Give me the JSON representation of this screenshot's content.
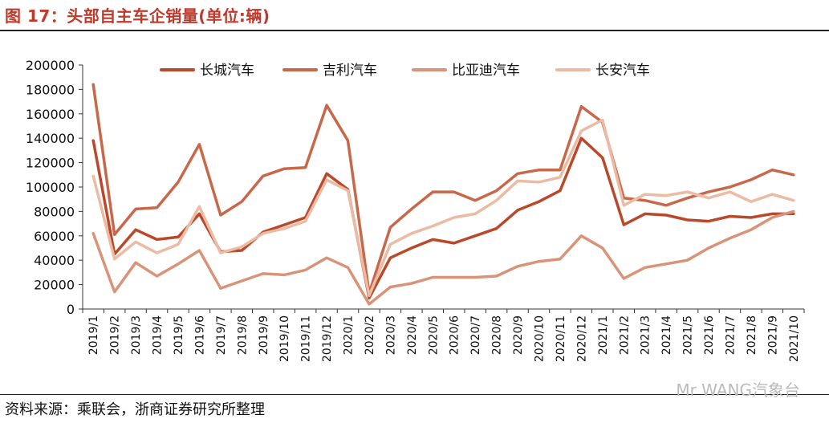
{
  "figure": {
    "title": "图 17：头部自主车企销量(单位:辆)",
    "source": "资料来源：乘联会，浙商证券研究所整理",
    "watermark": "Mr WANG汽象台"
  },
  "chart_data": {
    "type": "line",
    "title": "",
    "xlabel": "",
    "ylabel": "",
    "ylim": [
      0,
      200000
    ],
    "yticks": [
      0,
      20000,
      40000,
      60000,
      80000,
      100000,
      120000,
      140000,
      160000,
      180000,
      200000
    ],
    "grid": false,
    "legend_position": "top",
    "categories": [
      "2019/1",
      "2019/2",
      "2019/3",
      "2019/4",
      "2019/5",
      "2019/6",
      "2019/7",
      "2019/8",
      "2019/9",
      "2019/10",
      "2019/11",
      "2019/12",
      "2020/1",
      "2020/2",
      "2020/3",
      "2020/4",
      "2020/5",
      "2020/6",
      "2020/7",
      "2020/8",
      "2020/9",
      "2020/10",
      "2020/11",
      "2020/12",
      "2021/1",
      "2021/2",
      "2021/3",
      "2021/4",
      "2021/5",
      "2021/6",
      "2021/7",
      "2021/8",
      "2021/9",
      "2021/10"
    ],
    "series": [
      {
        "name": "长城汽车",
        "color": "#b9492a",
        "values": [
          138000,
          45000,
          65000,
          57000,
          59000,
          78000,
          47000,
          48000,
          63000,
          69000,
          75000,
          111000,
          98000,
          9000,
          42000,
          50000,
          57000,
          54000,
          60000,
          66000,
          81000,
          88000,
          97000,
          140000,
          124000,
          69000,
          78000,
          77000,
          73000,
          72000,
          76000,
          75000,
          78000,
          78000
        ]
      },
      {
        "name": "吉利汽车",
        "color": "#c8684a",
        "values": [
          184000,
          61000,
          82000,
          83000,
          104000,
          135000,
          77000,
          88000,
          109000,
          115000,
          116000,
          167000,
          138000,
          13000,
          67000,
          82000,
          96000,
          96000,
          89000,
          97000,
          111000,
          114000,
          114000,
          166000,
          153000,
          91000,
          89000,
          85000,
          91000,
          96000,
          100000,
          106000,
          114000,
          110000
        ]
      },
      {
        "name": "比亚迪汽车",
        "color": "#d99378",
        "values": [
          62000,
          14000,
          38000,
          27000,
          37000,
          48000,
          17000,
          23000,
          29000,
          28000,
          32000,
          42000,
          34000,
          4000,
          18000,
          21000,
          26000,
          26000,
          26000,
          27000,
          35000,
          39000,
          41000,
          60000,
          50000,
          25000,
          34000,
          37000,
          40000,
          50000,
          58000,
          65000,
          75000,
          80000
        ]
      },
      {
        "name": "长安汽车",
        "color": "#ebbba4",
        "values": [
          109000,
          41000,
          55000,
          46000,
          53000,
          84000,
          46000,
          51000,
          62000,
          66000,
          72000,
          106000,
          97000,
          11000,
          53000,
          62000,
          68000,
          75000,
          78000,
          89000,
          105000,
          104000,
          108000,
          146000,
          155000,
          85000,
          94000,
          93000,
          96000,
          91000,
          96000,
          88000,
          94000,
          89000
        ]
      }
    ]
  }
}
